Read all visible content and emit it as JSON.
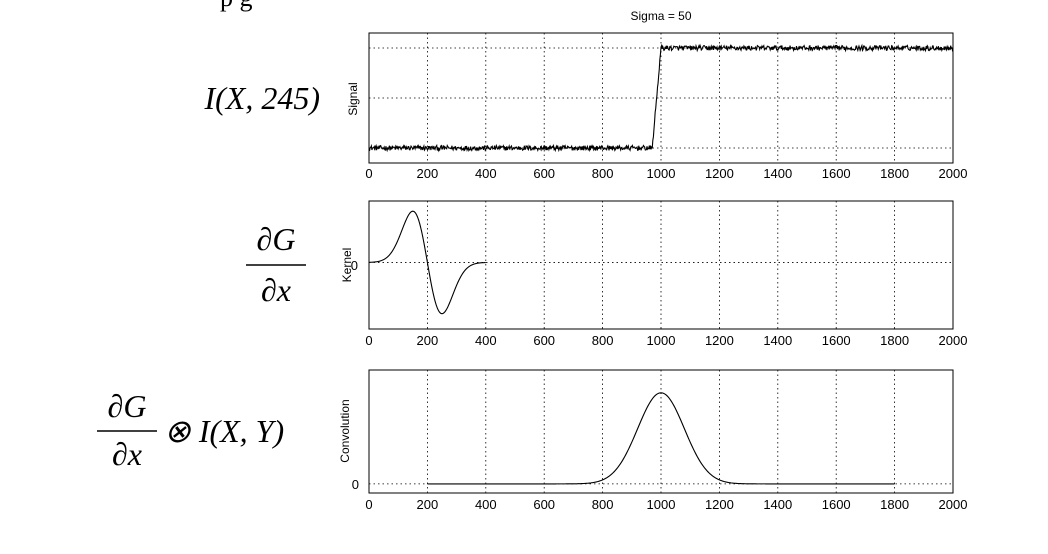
{
  "header_cutoff_text": "p                         g",
  "chart_data": [
    {
      "type": "line",
      "name": "signal",
      "title": "Sigma = 50",
      "ylabel": "Signal",
      "xlabel": "",
      "side_label": "I(X, 245)",
      "xlim": [
        0,
        2000
      ],
      "ylim": [
        -1.3,
        1.3
      ],
      "xticks": [
        0,
        200,
        400,
        600,
        800,
        1000,
        1200,
        1400,
        1600,
        1800,
        2000
      ],
      "yticks": [
        -1,
        0,
        1
      ],
      "yticklabels": [
        "",
        "",
        ""
      ],
      "grid": true,
      "series": [
        {
          "name": "step signal",
          "x": [
            0,
            970,
            1000,
            2000
          ],
          "y": [
            -1,
            -1,
            1,
            1
          ],
          "noise": 0.05
        }
      ]
    },
    {
      "type": "line",
      "name": "kernel",
      "title": "",
      "ylabel": "Kernel",
      "xlabel": "",
      "side_label_num": "∂G",
      "side_label_den": "∂x",
      "xlim": [
        0,
        2000
      ],
      "ylim": [
        -1.3,
        1.2
      ],
      "xticks": [
        0,
        200,
        400,
        600,
        800,
        1000,
        1200,
        1400,
        1600,
        1800,
        2000
      ],
      "yticks": [
        0
      ],
      "yticklabels": [
        "0"
      ],
      "grid": true,
      "series": [
        {
          "name": "derivative of gaussian",
          "x": [
            0,
            20,
            40,
            60,
            80,
            100,
            120,
            140,
            150,
            160,
            180,
            200,
            220,
            240,
            250,
            260,
            280,
            300,
            320,
            340,
            360,
            380,
            400
          ],
          "y": [
            0.002,
            0.014,
            0.06,
            0.19,
            0.45,
            0.78,
            0.98,
            0.94,
            1.0,
            0.78,
            0.4,
            0.0,
            -0.4,
            -0.78,
            -1.0,
            -0.94,
            -0.78,
            -0.45,
            -0.19,
            -0.06,
            -0.014,
            -0.002,
            0.0
          ]
        }
      ]
    },
    {
      "type": "line",
      "name": "convolution",
      "title": "",
      "ylabel": "Convolution",
      "xlabel": "",
      "side_label_num": "∂G",
      "side_label_den": "∂x",
      "side_label_rest": "⊗ I(X, Y)",
      "xlim": [
        0,
        2000
      ],
      "ylim": [
        -0.1,
        1.25
      ],
      "xticks": [
        0,
        200,
        400,
        600,
        800,
        1000,
        1200,
        1400,
        1600,
        1800,
        2000
      ],
      "yticks": [
        0
      ],
      "yticklabels": [
        "0"
      ],
      "grid": true,
      "series": [
        {
          "name": "convolution output",
          "x_start": 200,
          "x_end": 1800,
          "peak_center": 1000,
          "peak_sigma": 50,
          "peak_height": 1.0
        }
      ]
    }
  ]
}
